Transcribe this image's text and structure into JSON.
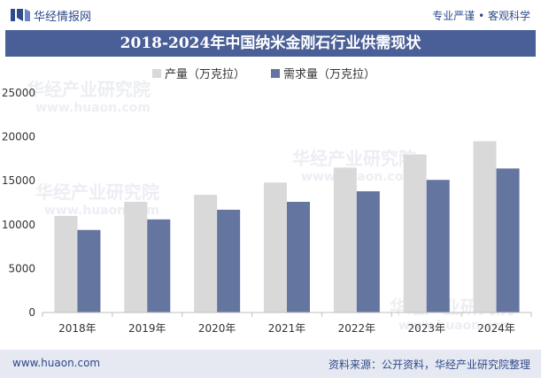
{
  "header": {
    "brand": "华经情报网",
    "tagline": "专业严谨 • 客观科学"
  },
  "title": "2018-2024年中国纳米金刚石行业供需现状",
  "watermark": {
    "text_cn": "华经产业研究院",
    "text_url": "www.huaon.com"
  },
  "colors": {
    "title_bar": "#4a5f97",
    "production": "#d9d9d9",
    "demand": "#6475a0",
    "footer_bg": "#e6e9f2",
    "brand_text": "#2e4a8a"
  },
  "chart_data": {
    "type": "bar",
    "categories": [
      "2018年",
      "2019年",
      "2020年",
      "2021年",
      "2022年",
      "2023年",
      "2024年"
    ],
    "series": [
      {
        "name": "产量（万克拉）",
        "values": [
          11000,
          12600,
          13400,
          14800,
          16500,
          18000,
          19500
        ]
      },
      {
        "name": "需求量（万克拉）",
        "values": [
          9400,
          10600,
          11700,
          12600,
          13800,
          15100,
          16400
        ]
      }
    ],
    "ylim": [
      0,
      25000
    ],
    "yticks": [
      "0",
      "5000",
      "10000",
      "15000",
      "20000",
      "25000"
    ],
    "legend_position": "top-center",
    "grid": false
  },
  "footer": {
    "url": "www.huaon.com",
    "source": "资料来源：公开资料，华经产业研究院整理"
  }
}
